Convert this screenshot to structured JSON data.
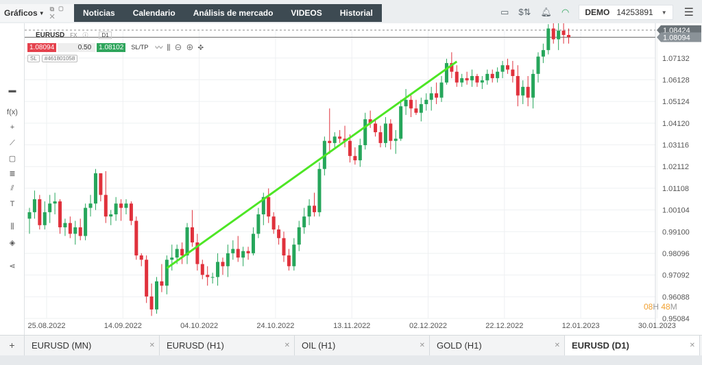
{
  "brand": {
    "label": "Gráficos"
  },
  "nav": [
    {
      "label": "Noticias"
    },
    {
      "label": "Calendario"
    },
    {
      "label": "Análisis de mercado"
    },
    {
      "label": "VIDEOS"
    },
    {
      "label": "Historial"
    }
  ],
  "account": {
    "mode": "DEMO",
    "number": "14253891"
  },
  "trade_panel": {
    "symbol": "EURUSD",
    "market": "FX",
    "timeframe": "D1",
    "sell": "1.08094",
    "lot": "0.50",
    "buy": "1.08102",
    "sltp": "SL/TP",
    "sl_badge": "SL",
    "order_id": "#461801058"
  },
  "candle_timer": {
    "hours": "08",
    "h_unit": "H",
    "minutes": "48",
    "m_unit": "M"
  },
  "chart_data": {
    "type": "candlestick",
    "symbol": "EURUSD",
    "timeframe": "D1",
    "y_ticks": [
      "1.07132",
      "1.06128",
      "1.05124",
      "1.04120",
      "1.03116",
      "1.02112",
      "1.01108",
      "1.00104",
      "0.99100",
      "0.98096",
      "0.97092",
      "0.96088",
      "0.95084"
    ],
    "x_ticks": [
      "25.08.2022",
      "14.09.2022",
      "04.10.2022",
      "24.10.2022",
      "13.11.2022",
      "02.12.2022",
      "22.12.2022",
      "12.01.2023",
      "30.01.2023"
    ],
    "price_tags": [
      {
        "label": "1.08424",
        "value": 1.08424
      },
      {
        "label": "1.08094",
        "value": 1.08094
      }
    ],
    "ylim": [
      0.95084,
      1.08424
    ],
    "trendline": {
      "from": {
        "date": "29.09.2022",
        "price": 0.9741
      },
      "to": {
        "date": "15.12.2022",
        "price": 1.0697
      }
    },
    "ohlc": [
      [
        0.997,
        1.002,
        0.99,
        1.0
      ],
      [
        1.0,
        1.01,
        0.997,
        1.006
      ],
      [
        1.006,
        1.008,
        0.992,
        0.994
      ],
      [
        0.994,
        1.005,
        0.992,
        1.0
      ],
      [
        1.0,
        1.008,
        0.995,
        1.004
      ],
      [
        1.004,
        1.009,
        0.999,
        1.005
      ],
      [
        1.005,
        1.006,
        0.99,
        0.993
      ],
      [
        0.993,
        0.997,
        0.989,
        0.995
      ],
      [
        0.995,
        0.998,
        0.988,
        0.99
      ],
      [
        0.99,
        0.996,
        0.985,
        0.993
      ],
      [
        0.993,
        0.997,
        0.987,
        0.989
      ],
      [
        0.989,
        1.004,
        0.987,
        1.002
      ],
      [
        1.002,
        1.008,
        0.998,
        1.004
      ],
      [
        1.004,
        1.02,
        1.001,
        1.018
      ],
      [
        1.018,
        1.018,
        1.005,
        1.008
      ],
      [
        1.008,
        1.019,
        0.995,
        0.998
      ],
      [
        0.998,
        1.001,
        0.994,
        0.999
      ],
      [
        0.999,
        1.007,
        0.996,
        1.004
      ],
      [
        1.004,
        1.006,
        0.996,
        1.002
      ],
      [
        1.002,
        1.006,
        0.999,
        1.004
      ],
      [
        1.004,
        1.005,
        0.994,
        0.996
      ],
      [
        0.996,
        0.998,
        0.978,
        0.98
      ],
      [
        0.98,
        0.981,
        0.975,
        0.978
      ],
      [
        0.978,
        0.98,
        0.958,
        0.961
      ],
      [
        0.961,
        0.967,
        0.952,
        0.955
      ],
      [
        0.955,
        0.97,
        0.953,
        0.968
      ],
      [
        0.968,
        0.976,
        0.963,
        0.966
      ],
      [
        0.966,
        0.98,
        0.962,
        0.978
      ],
      [
        0.978,
        0.985,
        0.973,
        0.979
      ],
      [
        0.979,
        0.985,
        0.976,
        0.983
      ],
      [
        0.983,
        0.986,
        0.976,
        0.98
      ],
      [
        0.98,
        0.995,
        0.976,
        0.993
      ],
      [
        0.993,
        1.001,
        0.984,
        0.986
      ],
      [
        0.986,
        0.99,
        0.973,
        0.976
      ],
      [
        0.976,
        0.978,
        0.969,
        0.971
      ],
      [
        0.971,
        0.975,
        0.966,
        0.97
      ],
      [
        0.97,
        0.972,
        0.967,
        0.97
      ],
      [
        0.97,
        0.981,
        0.966,
        0.977
      ],
      [
        0.977,
        0.979,
        0.971,
        0.975
      ],
      [
        0.975,
        0.985,
        0.97,
        0.981
      ],
      [
        0.981,
        0.987,
        0.978,
        0.983
      ],
      [
        0.983,
        0.989,
        0.977,
        0.979
      ],
      [
        0.979,
        0.984,
        0.975,
        0.982
      ],
      [
        0.982,
        0.984,
        0.978,
        0.981
      ],
      [
        0.981,
        0.993,
        0.98,
        0.99
      ],
      [
        0.99,
        1.002,
        0.988,
        0.999
      ],
      [
        0.999,
        1.009,
        0.994,
        1.007
      ],
      [
        1.007,
        1.011,
        0.995,
        0.998
      ],
      [
        0.998,
        1.0,
        0.99,
        0.992
      ],
      [
        0.992,
        0.994,
        0.985,
        0.988
      ],
      [
        0.988,
        0.991,
        0.977,
        0.98
      ],
      [
        0.98,
        0.983,
        0.973,
        0.975
      ],
      [
        0.975,
        0.988,
        0.973,
        0.985
      ],
      [
        0.985,
        0.996,
        0.982,
        0.993
      ],
      [
        0.993,
        1.002,
        0.99,
        0.998
      ],
      [
        0.998,
        1.006,
        0.994,
        1.003
      ],
      [
        1.003,
        1.009,
        0.998,
        1.0
      ],
      [
        1.0,
        1.023,
        0.998,
        1.02
      ],
      [
        1.02,
        1.035,
        1.017,
        1.033
      ],
      [
        1.033,
        1.048,
        1.027,
        1.032
      ],
      [
        1.032,
        1.037,
        1.03,
        1.035
      ],
      [
        1.035,
        1.038,
        1.032,
        1.034
      ],
      [
        1.034,
        1.04,
        1.03,
        1.033
      ],
      [
        1.033,
        1.036,
        1.023,
        1.026
      ],
      [
        1.026,
        1.03,
        1.022,
        1.024
      ],
      [
        1.024,
        1.034,
        1.021,
        1.031
      ],
      [
        1.031,
        1.046,
        1.029,
        1.043
      ],
      [
        1.043,
        1.047,
        1.039,
        1.041
      ],
      [
        1.041,
        1.043,
        1.035,
        1.037
      ],
      [
        1.037,
        1.04,
        1.03,
        1.032
      ],
      [
        1.032,
        1.044,
        1.03,
        1.041
      ],
      [
        1.041,
        1.043,
        1.029,
        1.033
      ],
      [
        1.033,
        1.038,
        1.027,
        1.034
      ],
      [
        1.034,
        1.052,
        1.033,
        1.049
      ],
      [
        1.049,
        1.057,
        1.045,
        1.052
      ],
      [
        1.052,
        1.054,
        1.044,
        1.048
      ],
      [
        1.048,
        1.052,
        1.045,
        1.046
      ],
      [
        1.046,
        1.053,
        1.042,
        1.05
      ],
      [
        1.05,
        1.055,
        1.047,
        1.052
      ],
      [
        1.052,
        1.058,
        1.047,
        1.055
      ],
      [
        1.055,
        1.06,
        1.05,
        1.053
      ],
      [
        1.053,
        1.063,
        1.051,
        1.06
      ],
      [
        1.06,
        1.071,
        1.059,
        1.069
      ],
      [
        1.069,
        1.074,
        1.062,
        1.065
      ],
      [
        1.065,
        1.068,
        1.058,
        1.06
      ],
      [
        1.06,
        1.064,
        1.058,
        1.062
      ],
      [
        1.062,
        1.065,
        1.059,
        1.061
      ],
      [
        1.061,
        1.066,
        1.058,
        1.063
      ],
      [
        1.063,
        1.064,
        1.058,
        1.06
      ],
      [
        1.06,
        1.063,
        1.057,
        1.061
      ],
      [
        1.061,
        1.066,
        1.059,
        1.064
      ],
      [
        1.064,
        1.066,
        1.06,
        1.062
      ],
      [
        1.062,
        1.067,
        1.06,
        1.065
      ],
      [
        1.065,
        1.07,
        1.062,
        1.068
      ],
      [
        1.068,
        1.071,
        1.064,
        1.066
      ],
      [
        1.066,
        1.07,
        1.06,
        1.063
      ],
      [
        1.063,
        1.068,
        1.049,
        1.054
      ],
      [
        1.054,
        1.061,
        1.05,
        1.058
      ],
      [
        1.058,
        1.063,
        1.049,
        1.053
      ],
      [
        1.053,
        1.066,
        1.048,
        1.064
      ],
      [
        1.064,
        1.074,
        1.06,
        1.072
      ],
      [
        1.072,
        1.078,
        1.069,
        1.075
      ],
      [
        1.075,
        1.087,
        1.073,
        1.085
      ],
      [
        1.085,
        1.088,
        1.078,
        1.08
      ],
      [
        1.08,
        1.088,
        1.075,
        1.084
      ],
      [
        1.084,
        1.089,
        1.078,
        1.082
      ],
      [
        1.082,
        1.085,
        1.078,
        1.081
      ]
    ]
  },
  "bottom_tabs": [
    {
      "label": "EURUSD (MN)"
    },
    {
      "label": "EURUSD (H1)"
    },
    {
      "label": "OIL (H1)"
    },
    {
      "label": "GOLD (H1)"
    },
    {
      "label": "EURUSD (D1)"
    }
  ],
  "colors": {
    "up": "#26a65b",
    "down": "#e0313c",
    "trendline": "#4de625",
    "accent_bar": "#3d4a52"
  }
}
